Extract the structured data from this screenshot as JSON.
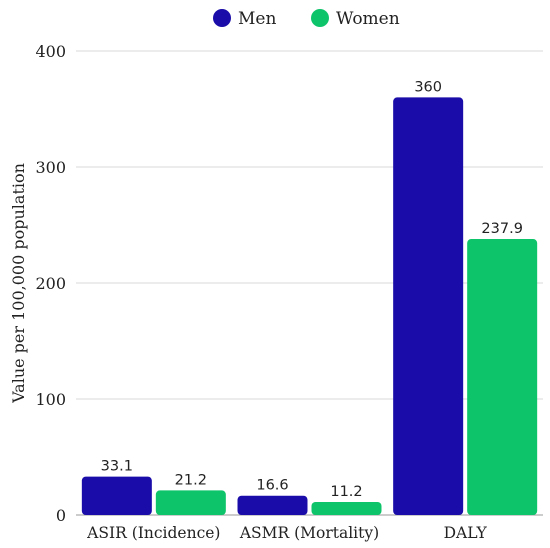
{
  "chart_data": {
    "type": "bar",
    "title": "",
    "xlabel": "",
    "ylabel": "Value per 100,000 population",
    "categories": [
      "ASIR (Incidence)",
      "ASMR (Mortality)",
      "DALY"
    ],
    "series": [
      {
        "name": "Men",
        "values": [
          33.1,
          16.6,
          360
        ],
        "labels": [
          "33.1",
          "16.6",
          "360"
        ],
        "color": "#1a0ca8"
      },
      {
        "name": "Women",
        "values": [
          21.2,
          11.2,
          237.9
        ],
        "labels": [
          "21.2",
          "11.2",
          "237.9"
        ],
        "color": "#0ec46a"
      }
    ],
    "ylim": [
      0,
      400
    ],
    "yticks": [
      0,
      100,
      200,
      300,
      400
    ],
    "grid": true,
    "legend_position": "top-center"
  }
}
